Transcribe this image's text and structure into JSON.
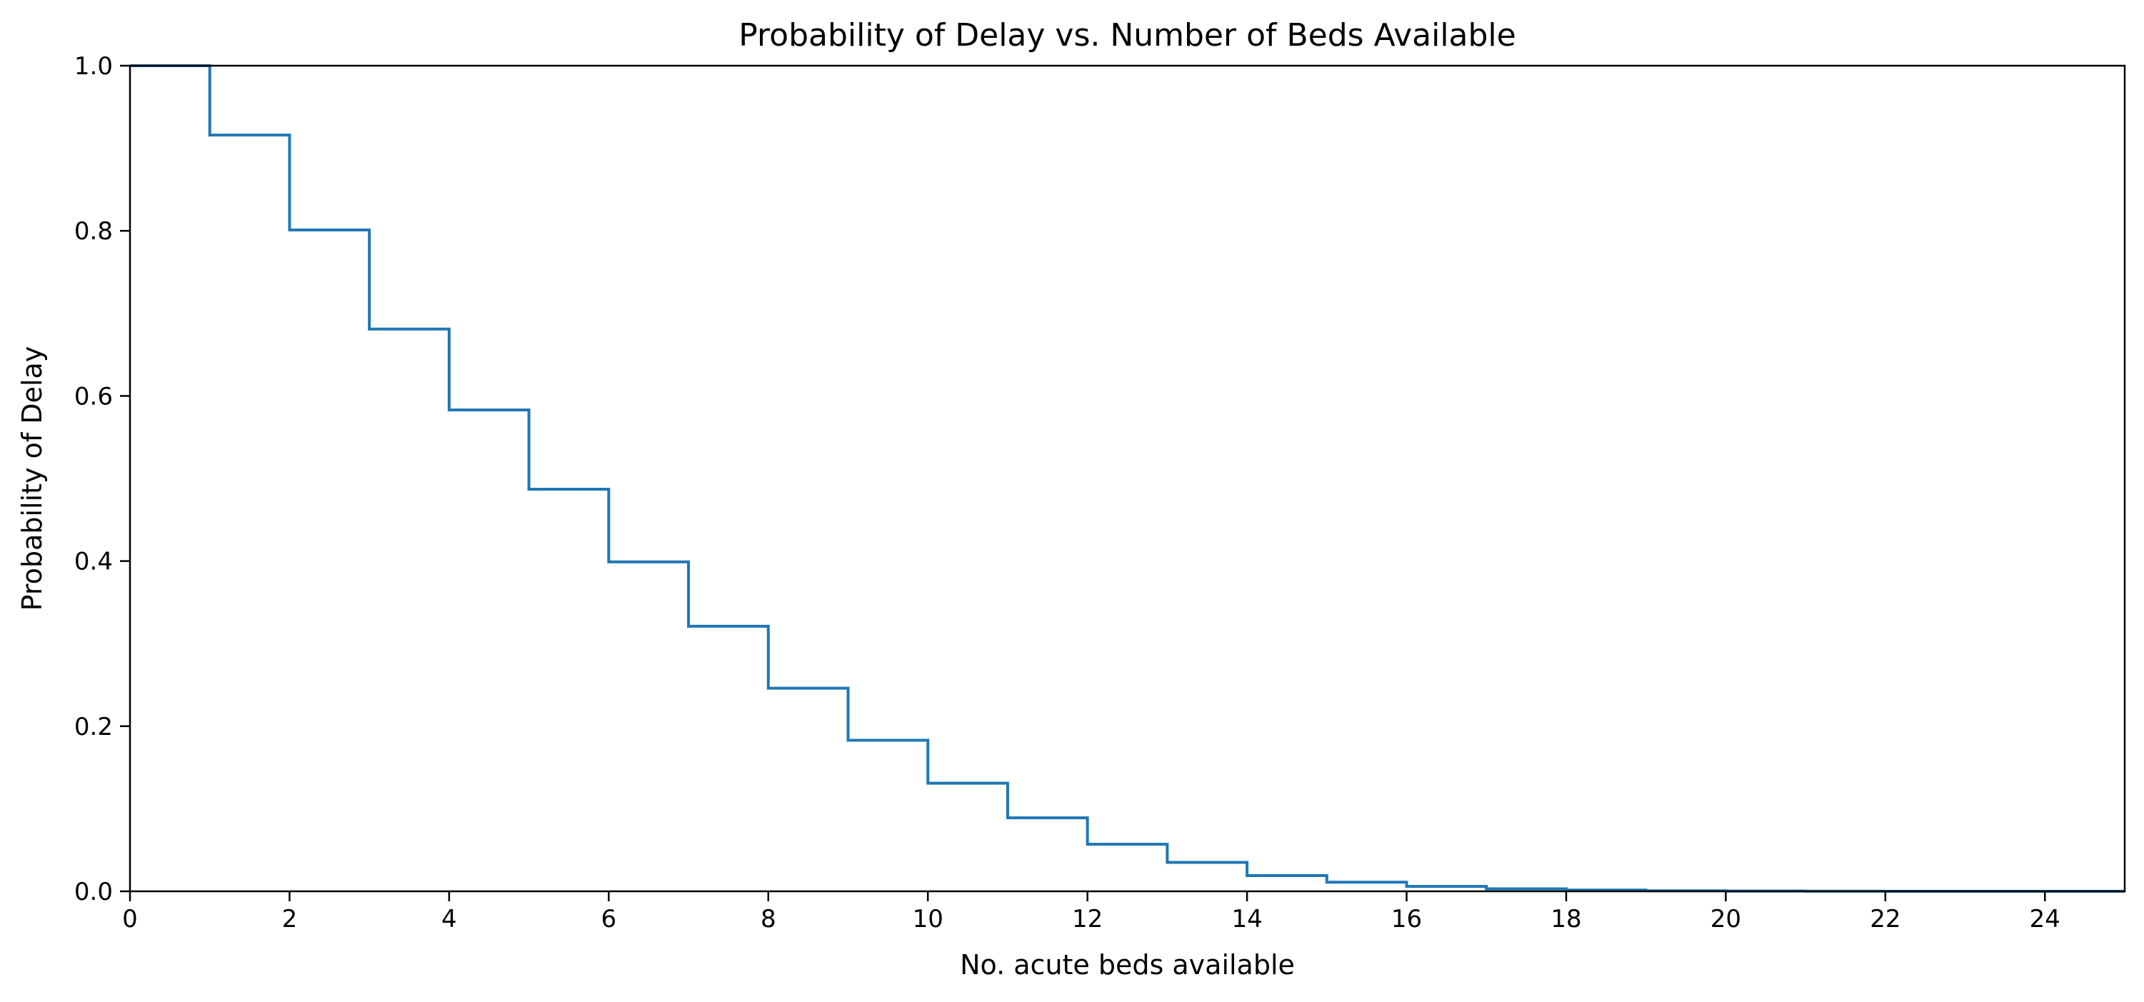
{
  "chart_data": {
    "type": "line",
    "drawstyle": "steps-post",
    "title": "Probability of Delay vs. Number of Beds Available",
    "xlabel": "No. acute beds available",
    "ylabel": "Probability of Delay",
    "xlim": [
      0,
      25
    ],
    "ylim": [
      0,
      1.0
    ],
    "xticks": [
      0,
      2,
      4,
      6,
      8,
      10,
      12,
      14,
      16,
      18,
      20,
      22,
      24
    ],
    "yticks": [
      0.0,
      0.2,
      0.4,
      0.6,
      0.8,
      1.0
    ],
    "grid": false,
    "legend": "none",
    "line_color": "#1f77b4",
    "series": [
      {
        "x": [
          0,
          1,
          2,
          3,
          4,
          5,
          6,
          7,
          8,
          9,
          10,
          11,
          12,
          13,
          14,
          15,
          16,
          17,
          18,
          19,
          20,
          21,
          22,
          23,
          24,
          25
        ],
        "y": [
          1.0,
          0.916,
          0.801,
          0.681,
          0.583,
          0.487,
          0.399,
          0.321,
          0.246,
          0.183,
          0.131,
          0.089,
          0.057,
          0.035,
          0.019,
          0.011,
          0.006,
          0.003,
          0.0015,
          0.0007,
          0.0003,
          0.0001,
          5e-05,
          2e-05,
          1e-05,
          1e-05
        ]
      }
    ]
  }
}
